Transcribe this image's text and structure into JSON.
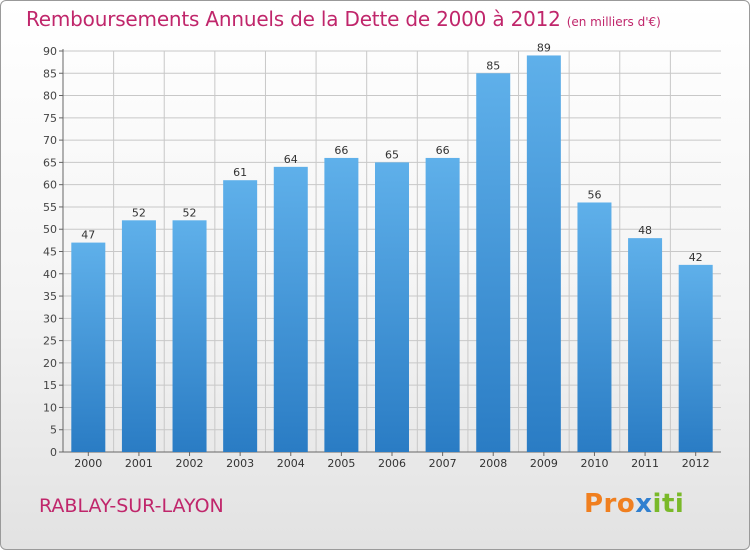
{
  "chart_data": {
    "type": "bar",
    "title": "Remboursements Annuels de la Dette de 2000 à 2012",
    "subtitle": "(en milliers d'€)",
    "xlabel": "",
    "ylabel": "",
    "categories": [
      "2000",
      "2001",
      "2002",
      "2003",
      "2004",
      "2005",
      "2006",
      "2007",
      "2008",
      "2009",
      "2010",
      "2011",
      "2012"
    ],
    "values": [
      47,
      52,
      52,
      61,
      64,
      66,
      65,
      66,
      85,
      89,
      56,
      48,
      42
    ],
    "ylim": [
      0,
      90
    ],
    "yticks": [
      0,
      5,
      10,
      15,
      20,
      25,
      30,
      35,
      40,
      45,
      50,
      55,
      60,
      65,
      70,
      75,
      80,
      85,
      90
    ],
    "grid": true,
    "data_labels": true,
    "bar_color": "#3f93d9",
    "bar_color_light": "#5fb0ea",
    "bar_color_dark": "#2a7cc4"
  },
  "footer": {
    "town": "RABLAY-SUR-LAYON",
    "logo_part1": "Pro",
    "logo_part2": "x",
    "logo_part3": "iti"
  },
  "colors": {
    "title": "#c0266b",
    "grid": "#c8c8c8"
  }
}
